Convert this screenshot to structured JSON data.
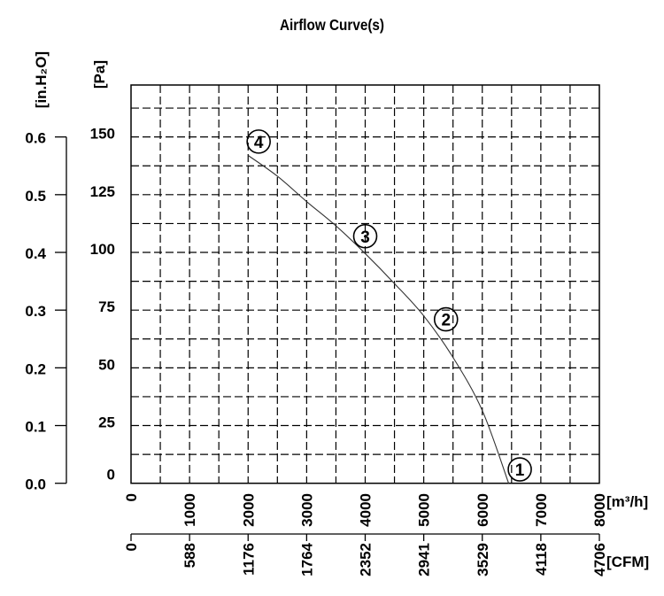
{
  "chart_data": {
    "type": "line",
    "title": "Airflow Curve(s)",
    "xlabel": "[m³/h]",
    "xlabel_secondary": "[CFM]",
    "ylabel": "[Pa]",
    "ylabel_secondary": "[in.H₂O]",
    "xlim": [
      0,
      8000
    ],
    "ylim": [
      0,
      172.5
    ],
    "grid": true,
    "grid_style": "dashed",
    "x_ticks": [
      0,
      1000,
      2000,
      3000,
      4000,
      5000,
      6000,
      7000,
      8000
    ],
    "x_ticks_secondary": [
      "0",
      "588",
      "1176",
      "1764",
      "2352",
      "2941",
      "3529",
      "4118",
      "4706"
    ],
    "y_ticks": [
      0,
      25,
      50,
      75,
      100,
      125,
      150
    ],
    "y_ticks_secondary": [
      "0.0",
      "0.1",
      "0.2",
      "0.3",
      "0.4",
      "0.5",
      "0.6"
    ],
    "series": [
      {
        "x": [
          2000,
          2500,
          3000,
          3500,
          4000,
          4500,
          5000,
          5500,
          6000,
          6450
        ],
        "y": [
          142,
          133,
          122,
          111.5,
          99.5,
          86.5,
          72.5,
          54.5,
          31.5,
          0
        ]
      }
    ],
    "markers": [
      {
        "label": "1",
        "x": 6640,
        "y": 6
      },
      {
        "label": "2",
        "x": 5380,
        "y": 71
      },
      {
        "label": "3",
        "x": 4000,
        "y": 107
      },
      {
        "label": "4",
        "x": 2180,
        "y": 148
      }
    ],
    "line_color": "#333333"
  }
}
